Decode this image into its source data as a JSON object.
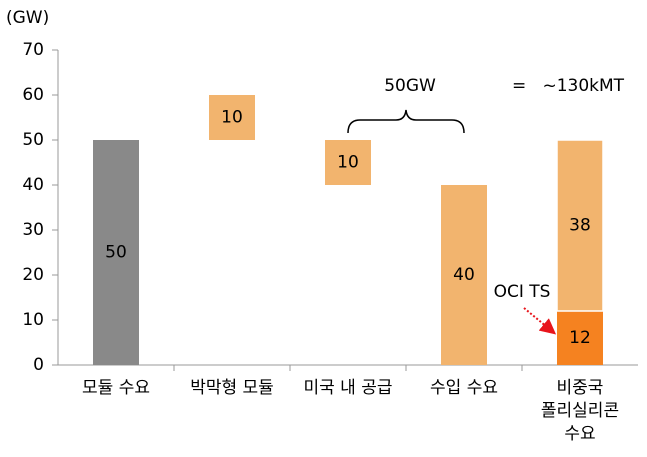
{
  "chart_data": {
    "type": "floating-bar",
    "y_label": "(GW)",
    "categories": [
      "모듈 수요",
      "박막형 모듈",
      "미국 내 공급",
      "수입 수요",
      "비중국\n폴리실리콘\n수요"
    ],
    "bars": [
      {
        "values": [
          50
        ],
        "colors": [
          "#898989"
        ]
      },
      {
        "base": 50,
        "values": [
          10
        ],
        "colors": [
          "#f2b46e"
        ]
      },
      {
        "base": 40,
        "values": [
          10
        ],
        "colors": [
          "#f2b46e"
        ]
      },
      {
        "values": [
          40
        ],
        "colors": [
          "#f2b46e"
        ]
      },
      {
        "values": [
          12,
          38
        ],
        "colors": [
          "#f58220",
          "#f2b46e"
        ]
      }
    ],
    "ylim": [
      0,
      70
    ],
    "yticks": [
      0,
      10,
      20,
      30,
      40,
      50,
      60,
      70
    ],
    "grid": false,
    "annotations": [
      "50GW",
      "=   ~130kMT",
      "OCI TS"
    ]
  }
}
